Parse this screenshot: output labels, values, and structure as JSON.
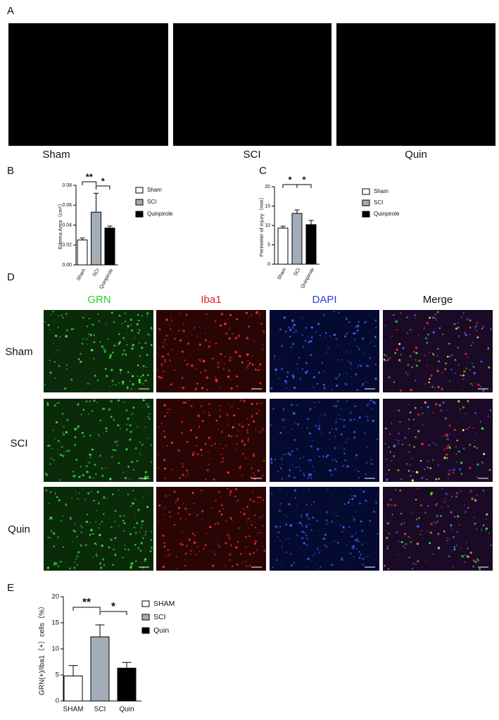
{
  "panel_a": {
    "label": "A",
    "captions": [
      "Sham",
      "SCI",
      "Quin"
    ]
  },
  "panel_d": {
    "label": "D",
    "columns": [
      "GRN",
      "Iba1",
      "DAPI",
      "Merge"
    ],
    "rows": [
      "Sham",
      "SCI",
      "Quin"
    ]
  },
  "chart_data": [
    {
      "type": "bar",
      "panel": "B",
      "y_label": "Edema Area（cm²）",
      "categories": [
        "Sham",
        "SCI",
        "Quinpirole"
      ],
      "values": [
        0.025,
        0.053,
        0.037
      ],
      "errors": [
        0.002,
        0.019,
        0.002
      ],
      "colors": [
        "#ffffff",
        "#a3adb8",
        "#000000"
      ],
      "annotations": [
        "**",
        "*"
      ],
      "ylim": [
        0,
        0.08
      ],
      "yticks": [
        {
          "value": 0,
          "label": "0.00"
        },
        {
          "value": 0.02,
          "label": "0.02"
        },
        {
          "value": 0.04,
          "label": "0.04"
        },
        {
          "value": 0.06,
          "label": "0.06"
        },
        {
          "value": 0.08,
          "label": "0.08"
        }
      ]
    },
    {
      "type": "bar",
      "panel": "C",
      "y_label": "Perimeter of injury（mm）",
      "categories": [
        "Sham",
        "SCI",
        "Quinpirole"
      ],
      "values": [
        9.3,
        13.1,
        10.2
      ],
      "errors": [
        0.5,
        0.9,
        1.1
      ],
      "colors": [
        "#ffffff",
        "#a3adb8",
        "#000000"
      ],
      "annotations": [
        "*",
        "*"
      ],
      "ylim": [
        0,
        20
      ],
      "yticks": [
        0,
        5,
        10,
        15,
        20
      ]
    },
    {
      "type": "bar",
      "panel": "E",
      "y_label": "GRN(+)/Iba1（+）cells（%）",
      "categories": [
        "SHAM",
        "SCI",
        "Quin"
      ],
      "values": [
        4.8,
        12.3,
        6.3
      ],
      "errors": [
        2.0,
        2.3,
        1.1
      ],
      "colors": [
        "#ffffff",
        "#a3adb8",
        "#000000"
      ],
      "annotations": [
        "**",
        "*"
      ],
      "ylim": [
        0,
        20
      ],
      "yticks": [
        0,
        5,
        10,
        15,
        20
      ]
    }
  ]
}
